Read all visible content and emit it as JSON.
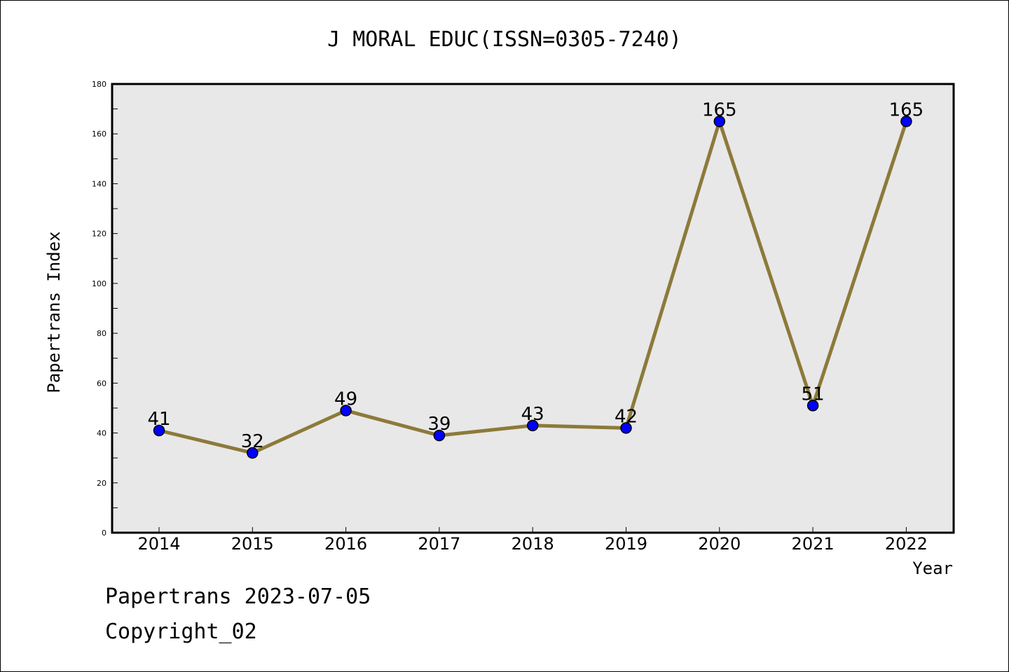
{
  "chart_data": {
    "type": "line",
    "title": "J MORAL EDUC(ISSN=0305-7240)",
    "xlabel": "Year",
    "ylabel": "Papertrans Index",
    "categories": [
      "2014",
      "2015",
      "2016",
      "2017",
      "2018",
      "2019",
      "2020",
      "2021",
      "2022"
    ],
    "values": [
      41,
      32,
      49,
      39,
      43,
      42,
      165,
      51,
      165
    ],
    "data_labels": [
      "41",
      "32",
      "49",
      "39",
      "43",
      "42",
      "165",
      "51",
      "165"
    ],
    "ylim": [
      0,
      180
    ],
    "yticks": [
      0,
      20,
      40,
      60,
      80,
      100,
      120,
      140,
      160,
      180
    ],
    "ytick_labels": [
      "0",
      "20",
      "40",
      "60",
      "80",
      "100",
      "120",
      "140",
      "160",
      "180"
    ],
    "grid": false,
    "colors": {
      "line": "#8c7a3a",
      "marker": "#0000ff",
      "plot_bg": "#e8e8e8"
    }
  },
  "footer": {
    "date_line": "Papertrans 2023-07-05",
    "copyright": "Copyright_02"
  }
}
